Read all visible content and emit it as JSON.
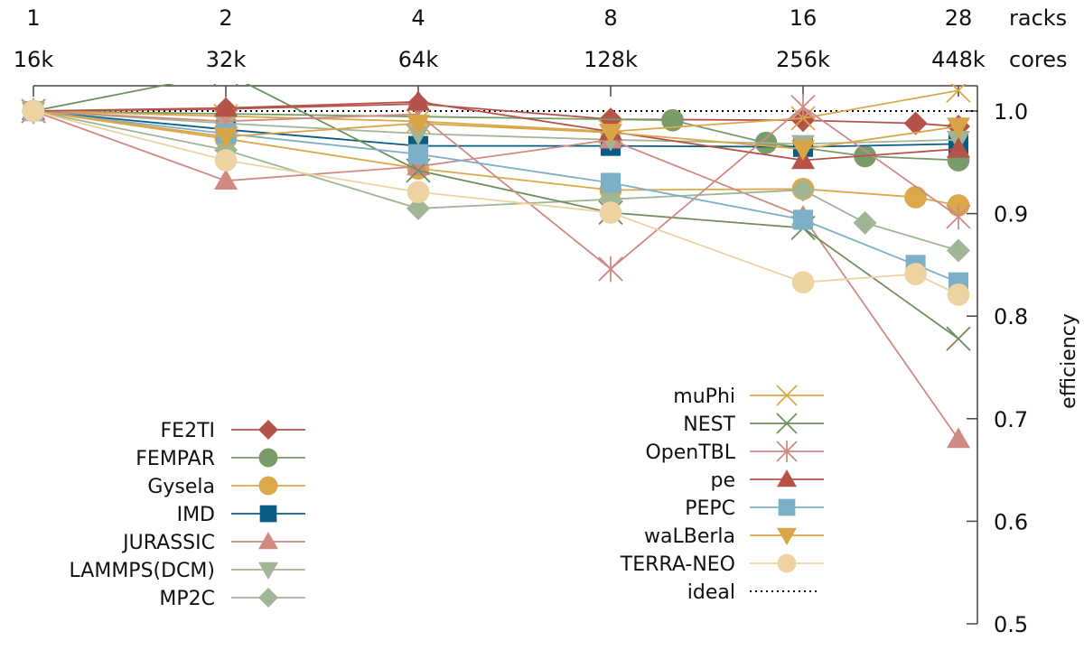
{
  "chart_data": {
    "type": "line",
    "title": "",
    "xscale": "log2",
    "xlim": [
      1,
      28
    ],
    "ylim": [
      0.5,
      1.0
    ],
    "y_clip_top": 1.025,
    "grid": false,
    "x_ticks": [
      {
        "racks": 1,
        "label_racks": "1",
        "label_cores": "16k"
      },
      {
        "racks": 2,
        "label_racks": "2",
        "label_cores": "32k"
      },
      {
        "racks": 4,
        "label_racks": "4",
        "label_cores": "64k"
      },
      {
        "racks": 8,
        "label_racks": "8",
        "label_cores": "128k"
      },
      {
        "racks": 16,
        "label_racks": "16",
        "label_cores": "256k"
      },
      {
        "racks": 28,
        "label_racks": "28",
        "label_cores": "448k"
      }
    ],
    "x_unit_labels": {
      "racks": "racks",
      "cores": "cores"
    },
    "y_ticks": [
      {
        "value": 1.0,
        "label": "1.0"
      },
      {
        "value": 0.9,
        "label": "0.9"
      },
      {
        "value": 0.8,
        "label": "0.8"
      },
      {
        "value": 0.7,
        "label": "0.7"
      },
      {
        "value": 0.6,
        "label": "0.6"
      },
      {
        "value": 0.5,
        "label": "0.5"
      }
    ],
    "ylabel": "efficiency",
    "legend_placement": "bottom-left and bottom-center (two columns)",
    "series": [
      {
        "name": "FE2TI",
        "color": "#b5534b",
        "marker": "diamond",
        "legend_col": 0,
        "x": [
          1,
          2,
          4,
          8,
          16,
          24,
          28
        ],
        "y": [
          1.0,
          1.002,
          1.007,
          0.992,
          0.991,
          0.988,
          0.985
        ]
      },
      {
        "name": "FEMPAR",
        "color": "#7a9a6a",
        "marker": "circle",
        "legend_col": 0,
        "x": [
          1,
          10,
          14,
          20,
          28
        ],
        "y": [
          1.0,
          0.991,
          0.969,
          0.956,
          0.952
        ]
      },
      {
        "name": "Gysela",
        "color": "#dba84a",
        "marker": "circle",
        "legend_col": 0,
        "x": [
          1,
          2,
          4,
          8,
          16,
          24,
          28
        ],
        "y": [
          1.0,
          0.973,
          0.944,
          0.923,
          0.924,
          0.916,
          0.908
        ]
      },
      {
        "name": "IMD",
        "color": "#0b5c84",
        "marker": "square",
        "legend_col": 0,
        "x": [
          1,
          2,
          4,
          8,
          16,
          28
        ],
        "y": [
          1.0,
          0.982,
          0.966,
          0.966,
          0.965,
          0.968
        ]
      },
      {
        "name": "JURASSIC",
        "color": "#d08a84",
        "marker": "triangle-up",
        "legend_col": 0,
        "x": [
          1,
          2,
          4,
          8,
          16,
          28
        ],
        "y": [
          1.0,
          0.932,
          0.946,
          0.972,
          0.897,
          0.68
        ]
      },
      {
        "name": "LAMMPS(DCM)",
        "color": "#a3b596",
        "marker": "triangle-down",
        "legend_col": 0,
        "x": [
          1,
          2,
          4,
          8,
          16,
          28
        ],
        "y": [
          1.0,
          0.988,
          0.978,
          0.972,
          0.968,
          0.972
        ]
      },
      {
        "name": "MP2C",
        "color": "#a0b596",
        "marker": "diamond",
        "legend_col": 0,
        "x": [
          1,
          2,
          4,
          8,
          16,
          20,
          28
        ],
        "y": [
          1.0,
          0.962,
          0.905,
          0.914,
          0.923,
          0.891,
          0.864
        ]
      },
      {
        "name": "muPhi",
        "color": "#dba84a",
        "marker": "x",
        "legend_col": 1,
        "x": [
          1,
          2,
          4,
          8,
          16,
          28
        ],
        "y": [
          1.0,
          0.995,
          0.99,
          0.98,
          0.993,
          1.02
        ]
      },
      {
        "name": "NEST",
        "color": "#6f8f5e",
        "marker": "x",
        "legend_col": 1,
        "x": [
          1,
          2,
          4,
          8,
          16,
          28
        ],
        "y": [
          1.0,
          1.037,
          0.942,
          0.901,
          0.886,
          0.778
        ]
      },
      {
        "name": "OpenTBL",
        "color": "#d08a84",
        "marker": "asterisk",
        "legend_col": 1,
        "x": [
          1,
          2,
          4,
          8,
          16,
          28
        ],
        "y": [
          1.0,
          0.99,
          0.997,
          0.846,
          1.004,
          0.897
        ]
      },
      {
        "name": "pe",
        "color": "#b5534b",
        "marker": "triangle-up",
        "legend_col": 1,
        "x": [
          1,
          2,
          4,
          8,
          16,
          28
        ],
        "y": [
          1.0,
          1.003,
          1.009,
          0.98,
          0.952,
          0.963
        ]
      },
      {
        "name": "PEPC",
        "color": "#7eafc8",
        "marker": "square",
        "legend_col": 1,
        "x": [
          1,
          2,
          4,
          8,
          16,
          24,
          28
        ],
        "y": [
          1.0,
          0.978,
          0.958,
          0.93,
          0.894,
          0.85,
          0.833
        ]
      },
      {
        "name": "waLBerla",
        "color": "#d9a647",
        "marker": "triangle-down",
        "legend_col": 1,
        "x": [
          1,
          2,
          4,
          8,
          16,
          28
        ],
        "y": [
          1.0,
          0.975,
          0.988,
          0.979,
          0.963,
          0.985
        ]
      },
      {
        "name": "TERRA-NEO",
        "color": "#edd3a2",
        "marker": "circle",
        "legend_col": 1,
        "x": [
          1,
          2,
          4,
          8,
          16,
          24,
          28
        ],
        "y": [
          1.0,
          0.952,
          0.921,
          0.901,
          0.833,
          0.841,
          0.821
        ]
      }
    ],
    "reference_line": {
      "name": "ideal",
      "value": 1.0,
      "style": "dotted",
      "color": "#000000",
      "legend_col": 1
    }
  }
}
